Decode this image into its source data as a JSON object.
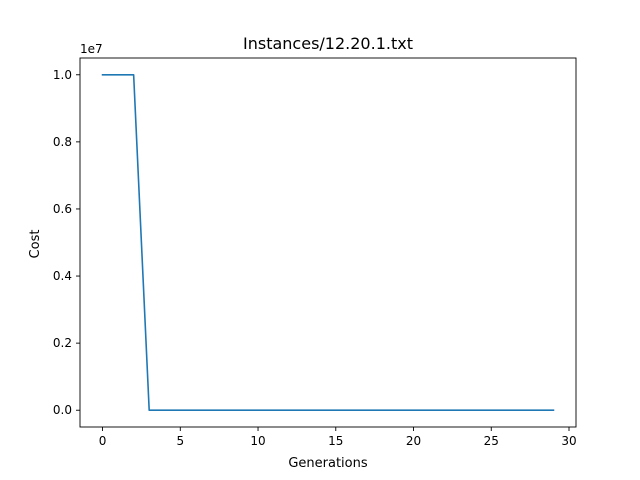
{
  "chart_data": {
    "type": "line",
    "title": "Instances/12.20.1.txt",
    "xlabel": "Generations",
    "ylabel": "Cost",
    "y_multiplier_label": "1e7",
    "xlim": [
      -1.45,
      30.45
    ],
    "ylim": [
      -0.05,
      1.05
    ],
    "x_ticks": [
      0,
      5,
      10,
      15,
      20,
      25,
      30
    ],
    "x_tick_labels": [
      "0",
      "5",
      "10",
      "15",
      "20",
      "25",
      "30"
    ],
    "y_ticks": [
      0.0,
      0.2,
      0.4,
      0.6,
      0.8,
      1.0
    ],
    "y_tick_labels": [
      "0.0",
      "0.2",
      "0.4",
      "0.6",
      "0.8",
      "1.0"
    ],
    "grid": false,
    "legend": "none",
    "series": [
      {
        "color": "#1f77b4",
        "x": [
          0,
          1,
          2,
          3,
          4,
          5,
          6,
          7,
          8,
          9,
          10,
          11,
          12,
          13,
          14,
          15,
          16,
          17,
          18,
          19,
          20,
          21,
          22,
          23,
          24,
          25,
          26,
          27,
          28,
          29
        ],
        "y": [
          1.0,
          1.0,
          1.0,
          0.0,
          0.0,
          0.0,
          0.0,
          0.0,
          0.0,
          0.0,
          0.0,
          0.0,
          0.0,
          0.0,
          0.0,
          0.0,
          0.0,
          0.0,
          0.0,
          0.0,
          0.0,
          0.0,
          0.0,
          0.0,
          0.0,
          0.0,
          0.0,
          0.0,
          0.0,
          0.0
        ]
      }
    ]
  }
}
